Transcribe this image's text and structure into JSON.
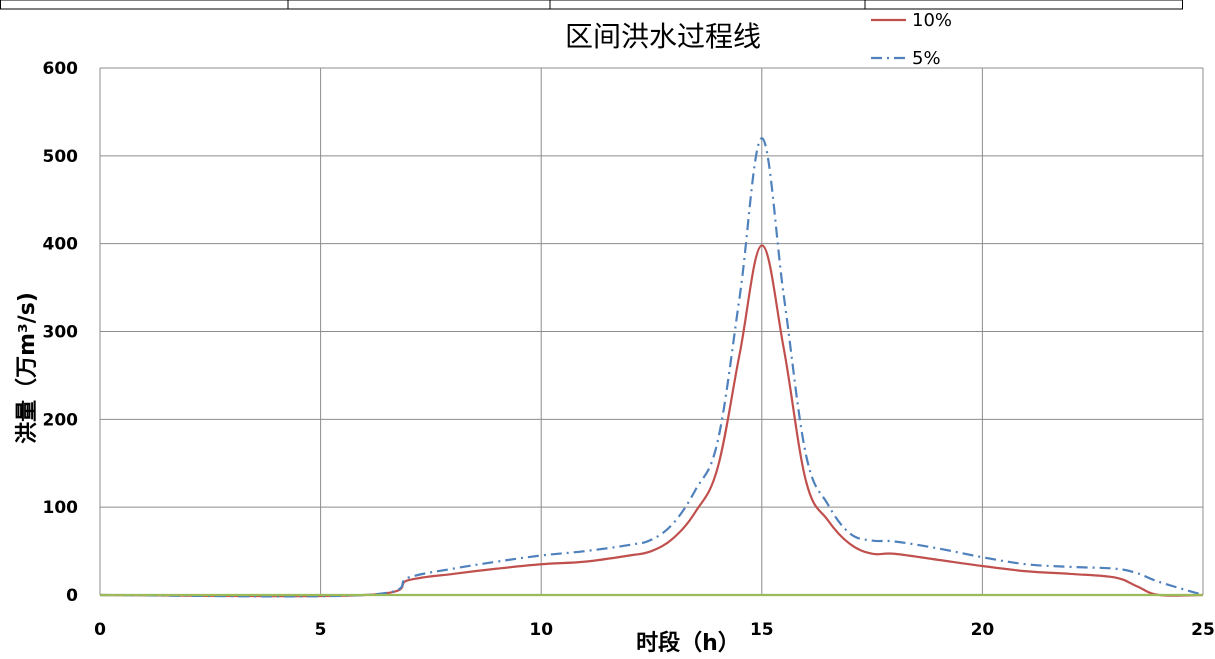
{
  "chart_data": {
    "type": "line",
    "title": "区间洪水过程线",
    "xlabel": "时段（h）",
    "ylabel": "洪量（万m³/s)",
    "xlim": [
      0,
      25
    ],
    "ylim": [
      0,
      600
    ],
    "x_ticks": [
      "0",
      "5",
      "10",
      "15",
      "20",
      "25"
    ],
    "y_ticks": [
      "0",
      "100",
      "200",
      "300",
      "400",
      "500",
      "600"
    ],
    "grid": true,
    "legend_position": "top-right",
    "series": [
      {
        "name": "10%",
        "color": "#c0504d",
        "dash": "solid",
        "x": [
          0,
          6,
          7,
          8,
          9,
          10,
          11,
          12,
          12.5,
          13,
          13.5,
          14,
          14.5,
          15,
          15.5,
          16,
          16.5,
          17,
          17.5,
          18,
          19,
          20,
          21,
          22,
          23,
          23.5,
          24,
          25
        ],
        "y": [
          0,
          0,
          17,
          24,
          30,
          35,
          38,
          45,
          50,
          65,
          95,
          145,
          275,
          398,
          280,
          130,
          85,
          58,
          47,
          47,
          40,
          33,
          27,
          24,
          20,
          10,
          0,
          0
        ]
      },
      {
        "name": "5%",
        "color": "#4f81bd",
        "dash": "dashdot",
        "x": [
          0,
          6,
          7,
          8,
          9,
          10,
          11,
          12,
          12.5,
          13,
          13.5,
          14,
          14.5,
          15,
          15.5,
          16,
          16.5,
          17,
          17.5,
          18,
          19,
          20,
          21,
          22,
          23,
          23.5,
          24,
          25
        ],
        "y": [
          0,
          0,
          20,
          30,
          38,
          45,
          50,
          57,
          63,
          82,
          120,
          175,
          340,
          520,
          340,
          160,
          103,
          70,
          62,
          61,
          53,
          43,
          35,
          32,
          30,
          25,
          15,
          0
        ]
      },
      {
        "name": "",
        "color": "#9bbb59",
        "dash": "solid",
        "x": [
          0,
          25
        ],
        "y": [
          0,
          0
        ]
      }
    ]
  }
}
